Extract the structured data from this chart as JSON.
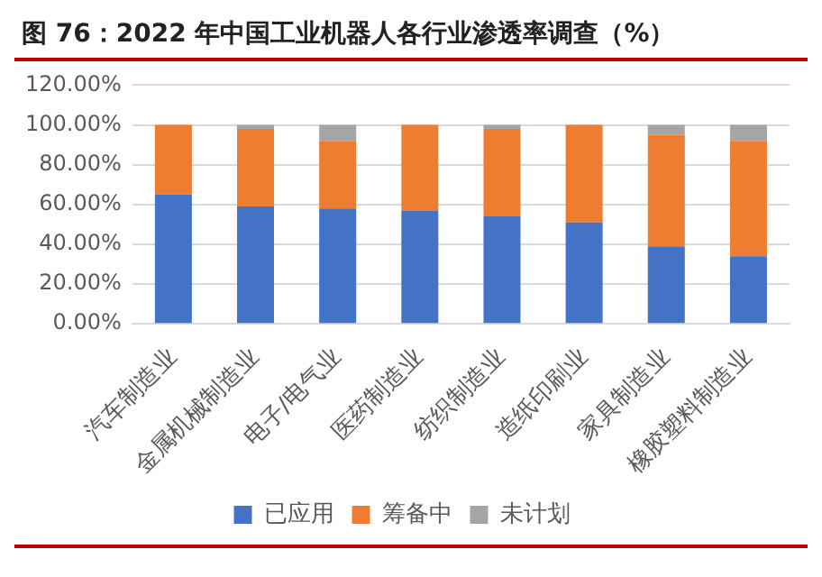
{
  "chart_data": {
    "type": "bar",
    "title": "图 76：2022 年中国工业机器人各行业渗透率调查（%）",
    "stacked": true,
    "categories": [
      "汽车制造业",
      "金属机械制造业",
      "电子/电气业",
      "医药制造业",
      "纺织制造业",
      "造纸印刷业",
      "家具制造业",
      "橡胶塑料制造业"
    ],
    "series": [
      {
        "name": "已应用",
        "color": "#4472c4",
        "values": [
          65,
          59,
          58,
          57,
          54,
          51,
          39,
          34
        ]
      },
      {
        "name": "筹备中",
        "color": "#ed7d31",
        "values": [
          35,
          39,
          34,
          43,
          44,
          49,
          56,
          58
        ]
      },
      {
        "name": "未计划",
        "color": "#a5a5a5",
        "values": [
          0,
          2,
          8,
          0,
          2,
          0,
          5,
          8
        ]
      }
    ],
    "ylim": [
      0,
      120
    ],
    "yticks": [
      {
        "value": 0,
        "label": "0.00%"
      },
      {
        "value": 20,
        "label": "20.00%"
      },
      {
        "value": 40,
        "label": "40.00%"
      },
      {
        "value": 60,
        "label": "60.00%"
      },
      {
        "value": 80,
        "label": "80.00%"
      },
      {
        "value": 100,
        "label": "100.00%"
      },
      {
        "value": 120,
        "label": "120.00%"
      }
    ],
    "grid": "y",
    "legend": "bottom"
  }
}
